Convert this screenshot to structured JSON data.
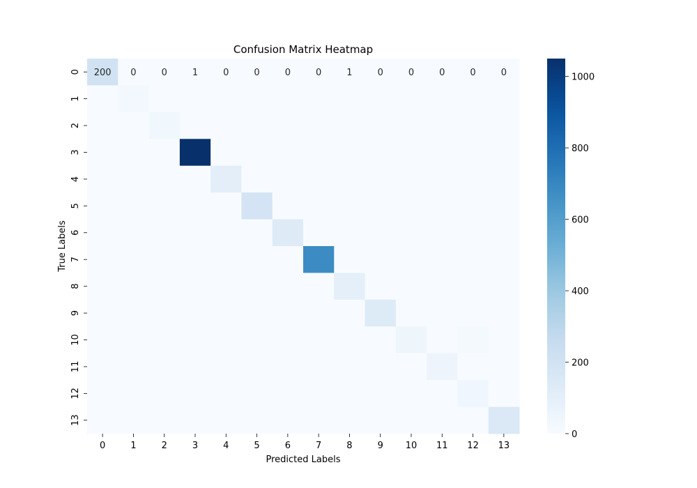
{
  "chart_data": {
    "type": "heatmap",
    "title": "Confusion Matrix Heatmap",
    "xlabel": "Predicted Labels",
    "ylabel": "True Labels",
    "x_categories": [
      "0",
      "1",
      "2",
      "3",
      "4",
      "5",
      "6",
      "7",
      "8",
      "9",
      "10",
      "11",
      "12",
      "13"
    ],
    "y_categories": [
      "0",
      "1",
      "2",
      "3",
      "4",
      "5",
      "6",
      "7",
      "8",
      "9",
      "10",
      "11",
      "12",
      "13"
    ],
    "matrix": [
      [
        200,
        0,
        0,
        1,
        0,
        0,
        0,
        0,
        1,
        0,
        0,
        0,
        0,
        0
      ],
      [
        0,
        25,
        0,
        0,
        0,
        0,
        0,
        0,
        0,
        0,
        0,
        0,
        0,
        0
      ],
      [
        0,
        0,
        35,
        0,
        0,
        0,
        0,
        0,
        0,
        0,
        0,
        0,
        0,
        0
      ],
      [
        0,
        0,
        0,
        1050,
        0,
        0,
        0,
        0,
        0,
        0,
        0,
        0,
        0,
        0
      ],
      [
        0,
        0,
        0,
        0,
        105,
        0,
        0,
        0,
        0,
        0,
        0,
        0,
        0,
        0
      ],
      [
        0,
        0,
        0,
        0,
        0,
        185,
        0,
        0,
        0,
        0,
        0,
        0,
        0,
        0
      ],
      [
        0,
        0,
        0,
        0,
        0,
        0,
        130,
        0,
        0,
        0,
        0,
        0,
        0,
        0
      ],
      [
        0,
        0,
        0,
        0,
        0,
        0,
        0,
        680,
        0,
        0,
        0,
        0,
        0,
        0
      ],
      [
        0,
        0,
        0,
        0,
        0,
        0,
        0,
        0,
        100,
        0,
        0,
        0,
        0,
        0
      ],
      [
        0,
        0,
        0,
        0,
        0,
        0,
        0,
        0,
        0,
        135,
        0,
        0,
        0,
        0
      ],
      [
        0,
        0,
        0,
        0,
        0,
        0,
        0,
        0,
        0,
        0,
        45,
        0,
        15,
        0
      ],
      [
        0,
        0,
        0,
        0,
        0,
        0,
        0,
        0,
        0,
        0,
        0,
        55,
        0,
        0
      ],
      [
        0,
        0,
        0,
        0,
        0,
        0,
        0,
        0,
        0,
        0,
        0,
        0,
        40,
        0
      ],
      [
        0,
        0,
        0,
        0,
        0,
        0,
        0,
        0,
        0,
        0,
        0,
        0,
        0,
        150
      ]
    ],
    "annotated_rows": [
      0
    ],
    "colormap": "Blues",
    "color_range": [
      0,
      1050
    ],
    "colorbar_ticks": [
      0,
      200,
      400,
      600,
      800,
      1000
    ],
    "colors": {
      "low": "#f7fbff",
      "high": "#08306b"
    }
  }
}
